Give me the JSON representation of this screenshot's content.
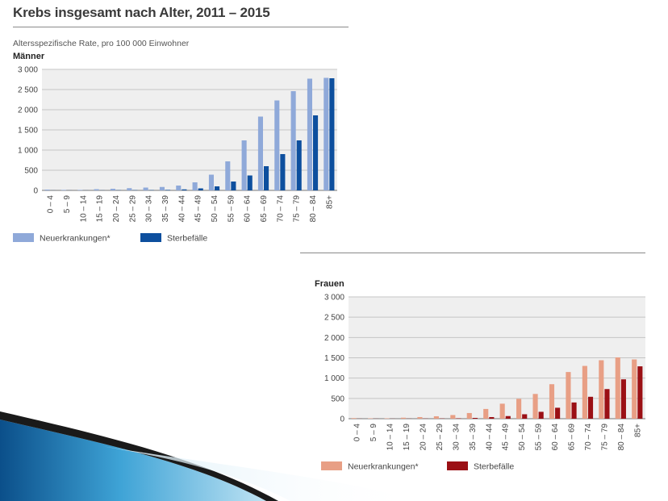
{
  "title": "Krebs insgesamt nach Alter, 2011 – 2015",
  "subtitle": "Altersspezifische Rate, pro 100 000 Einwohner",
  "colors": {
    "men_incidence": "#8fa9d9",
    "men_deaths": "#0d4f9e",
    "women_incidence": "#e89f85",
    "women_deaths": "#9b1015",
    "plot_bg": "#efefef",
    "grid": "#c4c4c4"
  },
  "chart_data": [
    {
      "type": "bar",
      "panel": "Männer",
      "categories": [
        "0 – 4",
        "5 – 9",
        "10 – 14",
        "15 – 19",
        "20 – 24",
        "25 – 29",
        "30 – 34",
        "35 – 39",
        "40 – 44",
        "45 – 49",
        "50 – 54",
        "55 – 59",
        "60 – 64",
        "65 – 69",
        "70 – 74",
        "75 – 79",
        "80 – 84",
        "85+"
      ],
      "series": [
        {
          "name": "Neuerkrankungen*",
          "values": [
            20,
            12,
            12,
            30,
            40,
            55,
            70,
            85,
            120,
            200,
            390,
            720,
            1240,
            1830,
            2230,
            2460,
            2770,
            2790
          ]
        },
        {
          "name": "Sterbefälle",
          "values": [
            2,
            2,
            2,
            3,
            5,
            6,
            8,
            12,
            25,
            50,
            100,
            220,
            370,
            600,
            900,
            1240,
            1860,
            2780
          ]
        }
      ],
      "ylim": [
        0,
        3000
      ],
      "yticks": [
        "0",
        "500",
        "1 000",
        "1 500",
        "2 000",
        "2 500",
        "3 000"
      ],
      "xlabel": "",
      "ylabel": ""
    },
    {
      "type": "bar",
      "panel": "Frauen",
      "categories": [
        "0 – 4",
        "5 – 9",
        "10 – 14",
        "15 – 19",
        "20 – 24",
        "25 – 29",
        "30 – 34",
        "35 – 39",
        "40 – 44",
        "45 – 49",
        "50 – 54",
        "55 – 59",
        "60 – 64",
        "65 – 69",
        "70 – 74",
        "75 – 79",
        "80 – 84",
        "85+"
      ],
      "series": [
        {
          "name": "Neuerkrankungen*",
          "values": [
            15,
            10,
            10,
            25,
            40,
            60,
            90,
            140,
            240,
            370,
            490,
            610,
            850,
            1150,
            1300,
            1440,
            1510,
            1460
          ]
        },
        {
          "name": "Sterbefälle",
          "values": [
            2,
            2,
            2,
            3,
            4,
            6,
            10,
            20,
            40,
            65,
            110,
            170,
            270,
            400,
            540,
            730,
            970,
            1290
          ]
        }
      ],
      "ylim": [
        0,
        3000
      ],
      "yticks": [
        "0",
        "500",
        "1 000",
        "1 500",
        "2 000",
        "2 500",
        "3 000"
      ],
      "xlabel": "",
      "ylabel": ""
    }
  ]
}
